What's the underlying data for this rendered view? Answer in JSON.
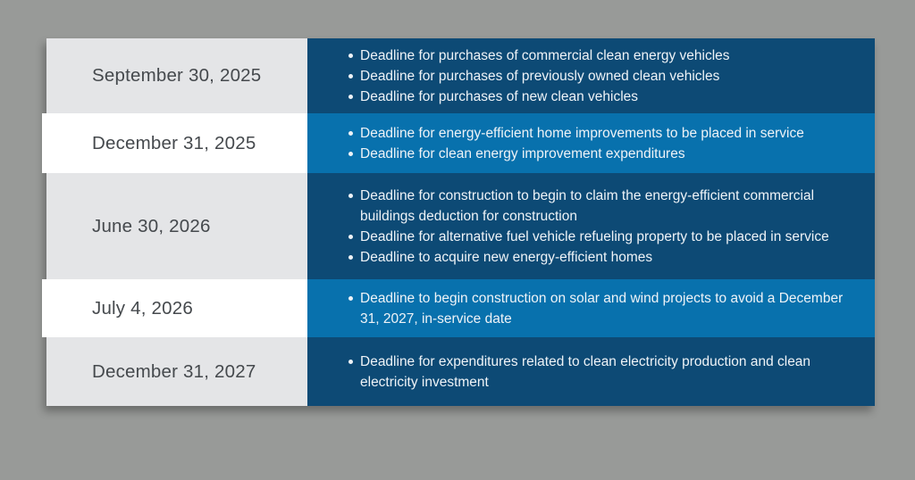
{
  "colors": {
    "page-bg": "#989a98",
    "navy": "#0d4a75",
    "blue": "#0871ad",
    "gray-cell": "#e4e5e7",
    "white-cell": "#ffffff",
    "date-text": "#45494d",
    "deadline-text": "#eef3f7"
  },
  "chart_data": {
    "type": "table",
    "layout": {
      "left_column": "date",
      "right_column": "deadline bullet list",
      "row_shading": "alternating gray/navy and white/blue",
      "grid": false,
      "header_row": false
    },
    "rows": [
      {
        "date": "September 30, 2025",
        "deadlines": [
          "Deadline for purchases of commercial clean energy vehicles",
          "Deadline for purchases of previously owned clean vehicles",
          "Deadline for purchases of new clean vehicles"
        ]
      },
      {
        "date": "December 31, 2025",
        "deadlines": [
          "Deadline for energy-efficient home improvements to be placed in service",
          "Deadline for clean energy improvement expenditures"
        ]
      },
      {
        "date": "June 30, 2026",
        "deadlines": [
          "Deadline for construction to begin to claim the energy-efficient commercial buildings deduction for construction",
          "Deadline for alternative fuel vehicle refueling property to be placed in service",
          "Deadline to acquire new energy-efficient homes"
        ]
      },
      {
        "date": "July 4, 2026",
        "deadlines": [
          "Deadline to begin construction on solar and wind projects to avoid a December 31, 2027, in-service date"
        ]
      },
      {
        "date": "December 31, 2027",
        "deadlines": [
          "Deadline for expenditures related to clean electricity production and clean electricity investment"
        ]
      }
    ]
  }
}
